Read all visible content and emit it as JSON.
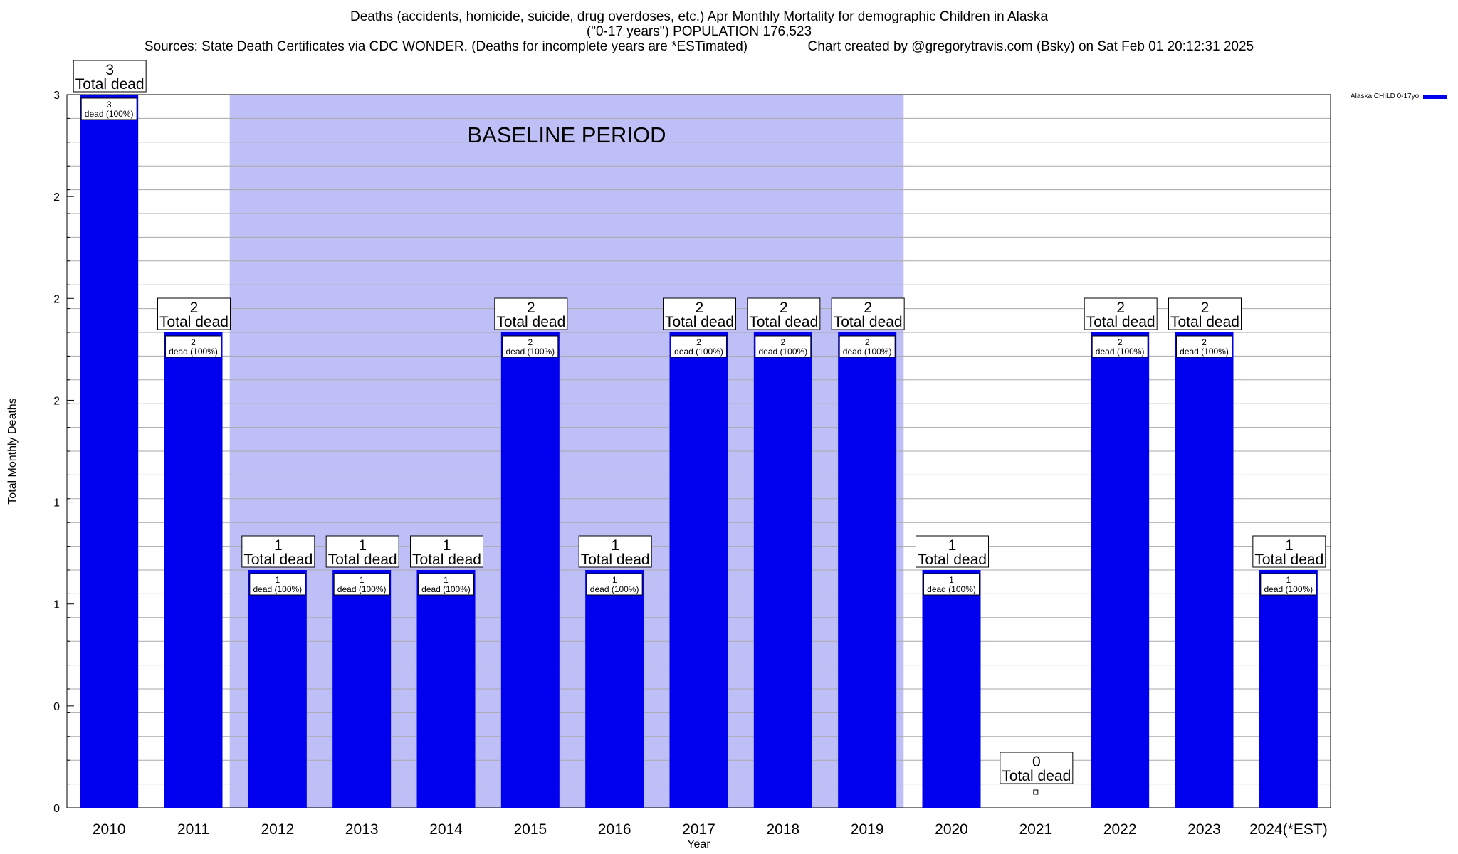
{
  "title": {
    "line1": "Deaths (accidents, homicide, suicide, drug overdoses, etc.) Apr Monthly Mortality for demographic Children in Alaska",
    "line2": "(\"0-17 years\") POPULATION 176,523",
    "line3": "Sources: State Death Certificates via CDC WONDER. (Deaths for incomplete years are *ESTimated)                Chart created by @gregorytravis.com (Bsky) on Sat Feb 01 20:12:31 2025"
  },
  "chart_data": {
    "type": "bar",
    "categories": [
      "2010",
      "2011",
      "2012",
      "2013",
      "2014",
      "2015",
      "2016",
      "2017",
      "2018",
      "2019",
      "2020",
      "2021",
      "2022",
      "2023",
      "2024(*EST)"
    ],
    "series": [
      {
        "name": "Alaska CHILD 0-17yo",
        "values": [
          3,
          2,
          1,
          1,
          1,
          2,
          1,
          2,
          2,
          2,
          1,
          0,
          2,
          2,
          1
        ]
      }
    ],
    "xlabel": "Year",
    "ylabel": "Total Monthly Deaths",
    "ylim": [
      0,
      3
    ],
    "ytick_labels": [
      "0",
      "0",
      "1",
      "1",
      "2",
      "2",
      "2",
      "3"
    ],
    "total_label": "Total dead",
    "inner_label": "dead (100%)",
    "baseline": {
      "label": "BASELINE PERIOD",
      "from": "2012",
      "to": "2019"
    },
    "grid": true,
    "legend_position": "top-right",
    "colors": {
      "bar": "#0000ee",
      "baseline": "#bfbff8",
      "grid": "#aaaaaa"
    }
  }
}
